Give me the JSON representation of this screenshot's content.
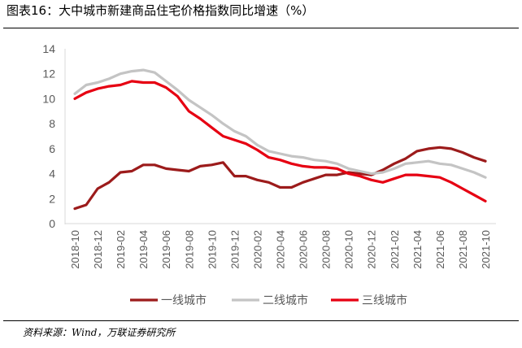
{
  "header": {
    "title": "图表16：大中城市新建商品住宅价格指数同比增速（%）"
  },
  "footer": {
    "source": "资料来源：Wind，万联证券研究所"
  },
  "chart_data": {
    "type": "line",
    "title": "图表16：大中城市新建商品住宅价格指数同比增速（%）",
    "xlabel": "",
    "ylabel": "",
    "ylim": [
      0,
      14
    ],
    "yticks": [
      0,
      2,
      4,
      6,
      8,
      10,
      12,
      14
    ],
    "grid": "none",
    "legend": "bottom",
    "x": [
      "2018-10",
      "2018-11",
      "2018-12",
      "2019-01",
      "2019-02",
      "2019-03",
      "2019-04",
      "2019-05",
      "2019-06",
      "2019-07",
      "2019-08",
      "2019-09",
      "2019-10",
      "2019-11",
      "2019-12",
      "2020-01",
      "2020-02",
      "2020-03",
      "2020-04",
      "2020-05",
      "2020-06",
      "2020-07",
      "2020-08",
      "2020-09",
      "2020-10",
      "2020-11",
      "2020-12",
      "2021-01",
      "2021-02",
      "2021-03",
      "2021-04",
      "2021-05",
      "2021-06",
      "2021-07",
      "2021-08",
      "2021-09",
      "2021-10"
    ],
    "xtick_labels": [
      "2018-10",
      "2018-12",
      "2019-02",
      "2019-04",
      "2019-06",
      "2019-08",
      "2019-10",
      "2019-12",
      "2020-02",
      "2020-04",
      "2020-06",
      "2020-08",
      "2020-10",
      "2020-12",
      "2021-02",
      "2021-04",
      "2021-06",
      "2021-08",
      "2021-10"
    ],
    "series": [
      {
        "name": "一线城市",
        "color": "#9c1b1b",
        "values": [
          1.2,
          1.5,
          2.8,
          3.3,
          4.1,
          4.2,
          4.7,
          4.7,
          4.4,
          4.3,
          4.2,
          4.6,
          4.7,
          4.9,
          3.8,
          3.8,
          3.5,
          3.3,
          2.9,
          2.9,
          3.3,
          3.6,
          3.9,
          3.9,
          4.1,
          4.0,
          3.9,
          4.3,
          4.8,
          5.2,
          5.8,
          6.0,
          6.1,
          6.0,
          5.7,
          5.3,
          5.0
        ]
      },
      {
        "name": "二线城市",
        "color": "#c4c4c4",
        "values": [
          10.4,
          11.1,
          11.3,
          11.6,
          12.0,
          12.2,
          12.3,
          12.1,
          11.4,
          10.7,
          9.9,
          9.3,
          8.7,
          8.0,
          7.4,
          7.0,
          6.3,
          5.8,
          5.6,
          5.4,
          5.3,
          5.1,
          5.0,
          4.8,
          4.4,
          4.2,
          4.0,
          4.1,
          4.4,
          4.8,
          4.9,
          5.0,
          4.8,
          4.7,
          4.4,
          4.1,
          3.7
        ]
      },
      {
        "name": "三线城市",
        "color": "#e60012",
        "values": [
          10.0,
          10.5,
          10.8,
          11.0,
          11.1,
          11.4,
          11.3,
          11.3,
          10.9,
          10.2,
          9.0,
          8.4,
          7.7,
          7.0,
          6.7,
          6.4,
          5.9,
          5.3,
          5.1,
          4.8,
          4.6,
          4.5,
          4.5,
          4.4,
          4.0,
          3.8,
          3.5,
          3.3,
          3.6,
          3.9,
          3.9,
          3.8,
          3.7,
          3.3,
          2.8,
          2.3,
          1.8
        ]
      }
    ]
  }
}
